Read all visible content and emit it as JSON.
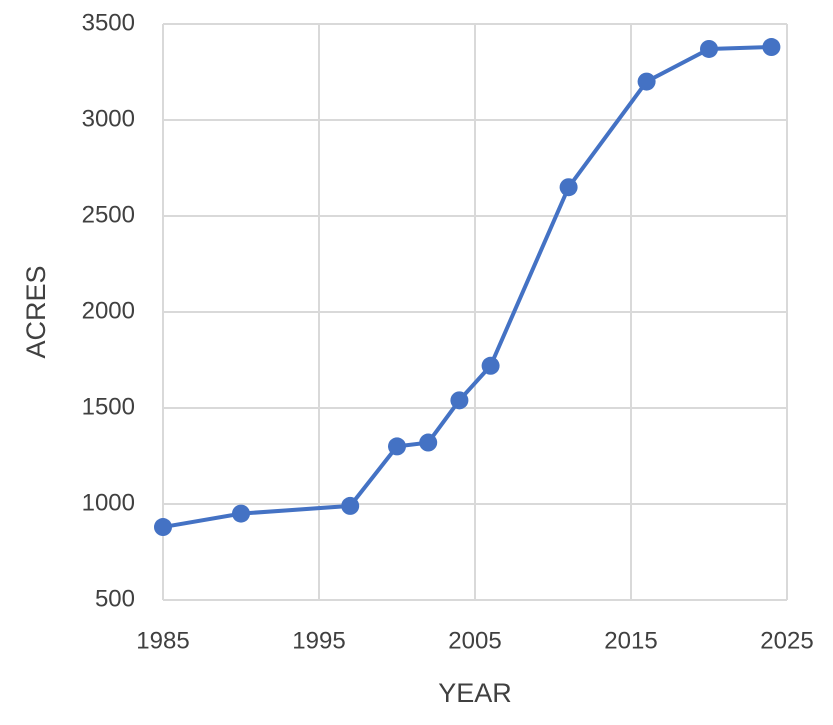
{
  "chart_data": {
    "type": "line",
    "x_label": "YEAR",
    "y_label": "ACRES",
    "series": [
      {
        "name": "Acres",
        "color": "#4472c4",
        "x": [
          1985,
          1990,
          1997,
          2000,
          2002,
          2004,
          2006,
          2011,
          2016,
          2020,
          2024
        ],
        "values": [
          880,
          950,
          990,
          1300,
          1320,
          1540,
          1720,
          2650,
          3200,
          3370,
          3380
        ]
      }
    ],
    "xlim": [
      1985,
      2025
    ],
    "xticks": [
      1985,
      1995,
      2005,
      2015,
      2025
    ],
    "ylim": [
      500,
      3500
    ],
    "yticks": [
      500,
      1000,
      1500,
      2000,
      2500,
      3000,
      3500
    ],
    "grid": true
  }
}
